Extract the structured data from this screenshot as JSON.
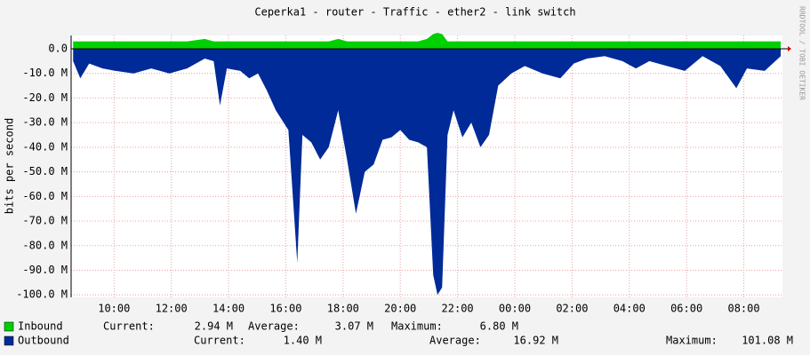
{
  "chart_data": {
    "type": "area",
    "title": "Ceperka1 - router - Traffic - ether2 - link switch",
    "y_label": "bits per second",
    "watermark": "RRDTOOL / TOBI OETIKER",
    "x": [
      8.57,
      8.82,
      9.13,
      9.6,
      10.06,
      10.68,
      11.3,
      11.93,
      12.55,
      13.17,
      13.48,
      13.7,
      13.94,
      14.41,
      14.72,
      15.03,
      15.34,
      15.65,
      16.09,
      16.4,
      16.58,
      16.89,
      17.2,
      17.5,
      17.83,
      18.14,
      18.45,
      18.76,
      19.07,
      19.38,
      19.69,
      20.0,
      20.31,
      20.62,
      20.93,
      21.15,
      21.3,
      21.46,
      21.65,
      21.86,
      22.17,
      22.48,
      22.8,
      23.1,
      23.42,
      23.88,
      24.35,
      24.97,
      25.59,
      26.06,
      26.52,
      27.14,
      27.76,
      28.23,
      28.7,
      29.32,
      29.94,
      30.56,
      31.18,
      31.74,
      32.11,
      32.73,
      33.29
    ],
    "series": [
      {
        "name": "Inbound",
        "color": "#00cf00",
        "values": [
          3,
          3,
          3,
          3,
          3,
          3,
          3,
          3,
          3,
          4,
          3,
          3,
          3,
          3,
          3,
          3,
          3,
          3,
          3,
          3,
          3,
          3,
          3,
          3,
          4,
          3,
          3,
          3,
          3,
          3,
          3,
          3,
          3,
          3,
          4,
          6,
          6.5,
          6,
          3,
          3,
          3,
          3,
          3,
          3,
          3,
          3,
          3,
          3,
          3,
          3,
          3,
          3,
          3,
          3,
          3,
          3,
          3,
          3,
          3,
          3,
          3,
          3,
          3
        ],
        "stats": [
          "Current:",
          "2.94 M",
          "Average:",
          "3.07 M",
          "Maximum:",
          "6.80 M"
        ]
      },
      {
        "name": "Outbound",
        "color": "#002a97",
        "values": [
          -5,
          -12,
          -6,
          -8,
          -9,
          -10,
          -8,
          -10,
          -8,
          -4,
          -5,
          -23,
          -8,
          -9,
          -12,
          -10,
          -17,
          -25,
          -33,
          -87,
          -35,
          -38,
          -45,
          -40,
          -25,
          -45,
          -67,
          -50,
          -47,
          -37,
          -36,
          -33,
          -37,
          -38,
          -40,
          -92,
          -100,
          -97,
          -35,
          -25,
          -36,
          -30,
          -40,
          -35,
          -15,
          -10,
          -7,
          -10,
          -12,
          -6,
          -4,
          -3,
          -5,
          -8,
          -5,
          -7,
          -9,
          -3,
          -7,
          -16,
          -8,
          -9,
          -3
        ],
        "stats": [
          "Current:",
          "1.40 M",
          "Average:",
          "16.92 M",
          "Maximum:",
          "101.08 M"
        ]
      }
    ],
    "xlim": [
      8.5,
      33.35
    ],
    "xticks": [
      {
        "value": 10,
        "label": "10:00"
      },
      {
        "value": 12,
        "label": "12:00"
      },
      {
        "value": 14,
        "label": "14:00"
      },
      {
        "value": 16,
        "label": "16:00"
      },
      {
        "value": 18,
        "label": "18:00"
      },
      {
        "value": 20,
        "label": "20:00"
      },
      {
        "value": 22,
        "label": "22:00"
      },
      {
        "value": 24,
        "label": "00:00"
      },
      {
        "value": 26,
        "label": "02:00"
      },
      {
        "value": 28,
        "label": "04:00"
      },
      {
        "value": 30,
        "label": "06:00"
      },
      {
        "value": 32,
        "label": "08:00"
      }
    ],
    "ylim": [
      -101,
      5.4
    ],
    "yticks": [
      {
        "value": 0,
        "label": "0.0"
      },
      {
        "value": -10,
        "label": "-10.0 M"
      },
      {
        "value": -20,
        "label": "-20.0 M"
      },
      {
        "value": -30,
        "label": "-30.0 M"
      },
      {
        "value": -40,
        "label": "-40.0 M"
      },
      {
        "value": -50,
        "label": "-50.0 M"
      },
      {
        "value": -60,
        "label": "-60.0 M"
      },
      {
        "value": -70,
        "label": "-70.0 M"
      },
      {
        "value": -80,
        "label": "-80.0 M"
      },
      {
        "value": -90,
        "label": "-90.0 M"
      },
      {
        "value": -100,
        "label": "-100.0 M"
      }
    ],
    "grid": true
  }
}
